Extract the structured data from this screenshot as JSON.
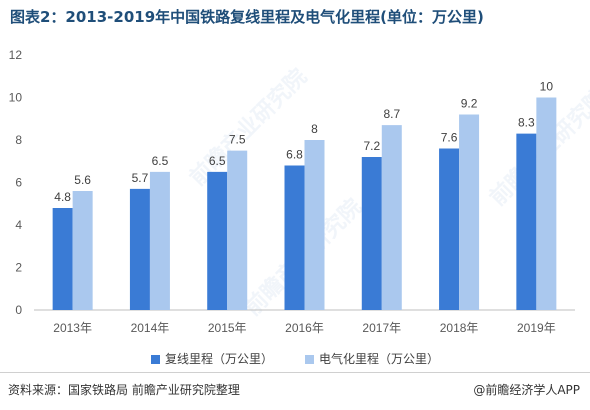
{
  "header": {
    "title": "图表2：2013-2019年中国铁路复线里程及电气化里程(单位：万公里)"
  },
  "watermark": {
    "text": "前瞻产业研究院"
  },
  "chart_data": {
    "type": "bar",
    "title": "图表2：2013-2019年中国铁路复线里程及电气化里程(单位：万公里)",
    "categories": [
      "2013年",
      "2014年",
      "2015年",
      "2016年",
      "2017年",
      "2018年",
      "2019年"
    ],
    "series": [
      {
        "name": "复线里程（万公里）",
        "color": "#3a7bd5",
        "values": [
          4.8,
          5.7,
          6.5,
          6.8,
          7.2,
          7.6,
          8.3
        ]
      },
      {
        "name": "电气化里程（万公里）",
        "color": "#aac8ee",
        "values": [
          5.6,
          6.5,
          7.5,
          8,
          8.7,
          9.2,
          10
        ]
      }
    ],
    "ylim": [
      0,
      12
    ],
    "yticks": [
      0,
      2,
      4,
      6,
      8,
      10,
      12
    ],
    "xlabel": "",
    "ylabel": "",
    "grid": false,
    "legend": "bottom"
  },
  "footer": {
    "source": "资料来源：国家铁路局 前瞻产业研究院整理",
    "credit": "@前瞻经济学人APP"
  }
}
